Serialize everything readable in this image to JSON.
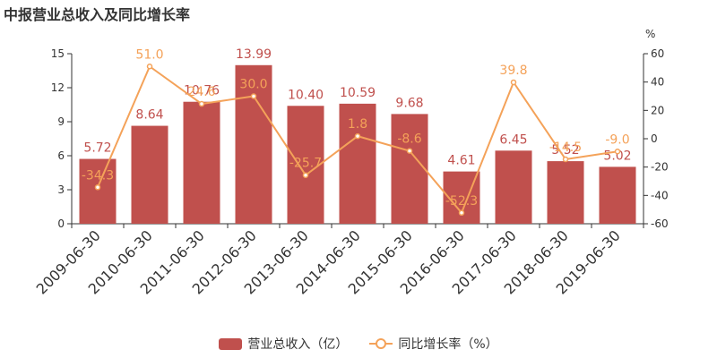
{
  "chart_title": "中报营业总收入及同比增长率",
  "chart_data": {
    "type": "bar",
    "categories": [
      "2009-06-30",
      "2010-06-30",
      "2011-06-30",
      "2012-06-30",
      "2013-06-30",
      "2014-06-30",
      "2015-06-30",
      "2016-06-30",
      "2017-06-30",
      "2018-06-30",
      "2019-06-30"
    ],
    "series": [
      {
        "name": "营业总收入（亿）",
        "type": "bar",
        "axis": "left",
        "values": [
          5.72,
          8.64,
          10.76,
          13.99,
          10.4,
          10.59,
          9.68,
          4.61,
          6.45,
          5.52,
          5.02
        ],
        "labels": [
          "5.72",
          "8.64",
          "10.76",
          "13.99",
          "10.40",
          "10.59",
          "9.68",
          "4.61",
          "6.45",
          "5.52",
          "5.02"
        ]
      },
      {
        "name": "同比增长率（%）",
        "type": "line",
        "axis": "right",
        "values": [
          -34.3,
          51.0,
          24.6,
          30.0,
          -25.7,
          1.8,
          -8.6,
          -52.3,
          39.8,
          -14.5,
          -9.0
        ],
        "labels": [
          "-34.3",
          "51.0",
          "24.6",
          "30.0",
          "-25.7",
          "1.8",
          "-8.6",
          "-52.3",
          "39.8",
          "-14.5",
          "-9.0"
        ]
      }
    ],
    "y_left": {
      "ylim": [
        0,
        15
      ],
      "ticks": [
        "0",
        "3",
        "6",
        "9",
        "12",
        "15"
      ]
    },
    "y_right": {
      "ylim": [
        -60,
        60
      ],
      "ticks": [
        "-60",
        "-40",
        "-20",
        "0",
        "20",
        "40",
        "60"
      ],
      "unit": "%"
    },
    "legend_position": "bottom-center",
    "grid": false,
    "colors": {
      "bar": "#c0504d",
      "line": "#f4a259",
      "bar_label": "#c0504d",
      "axis": "#333333"
    }
  }
}
